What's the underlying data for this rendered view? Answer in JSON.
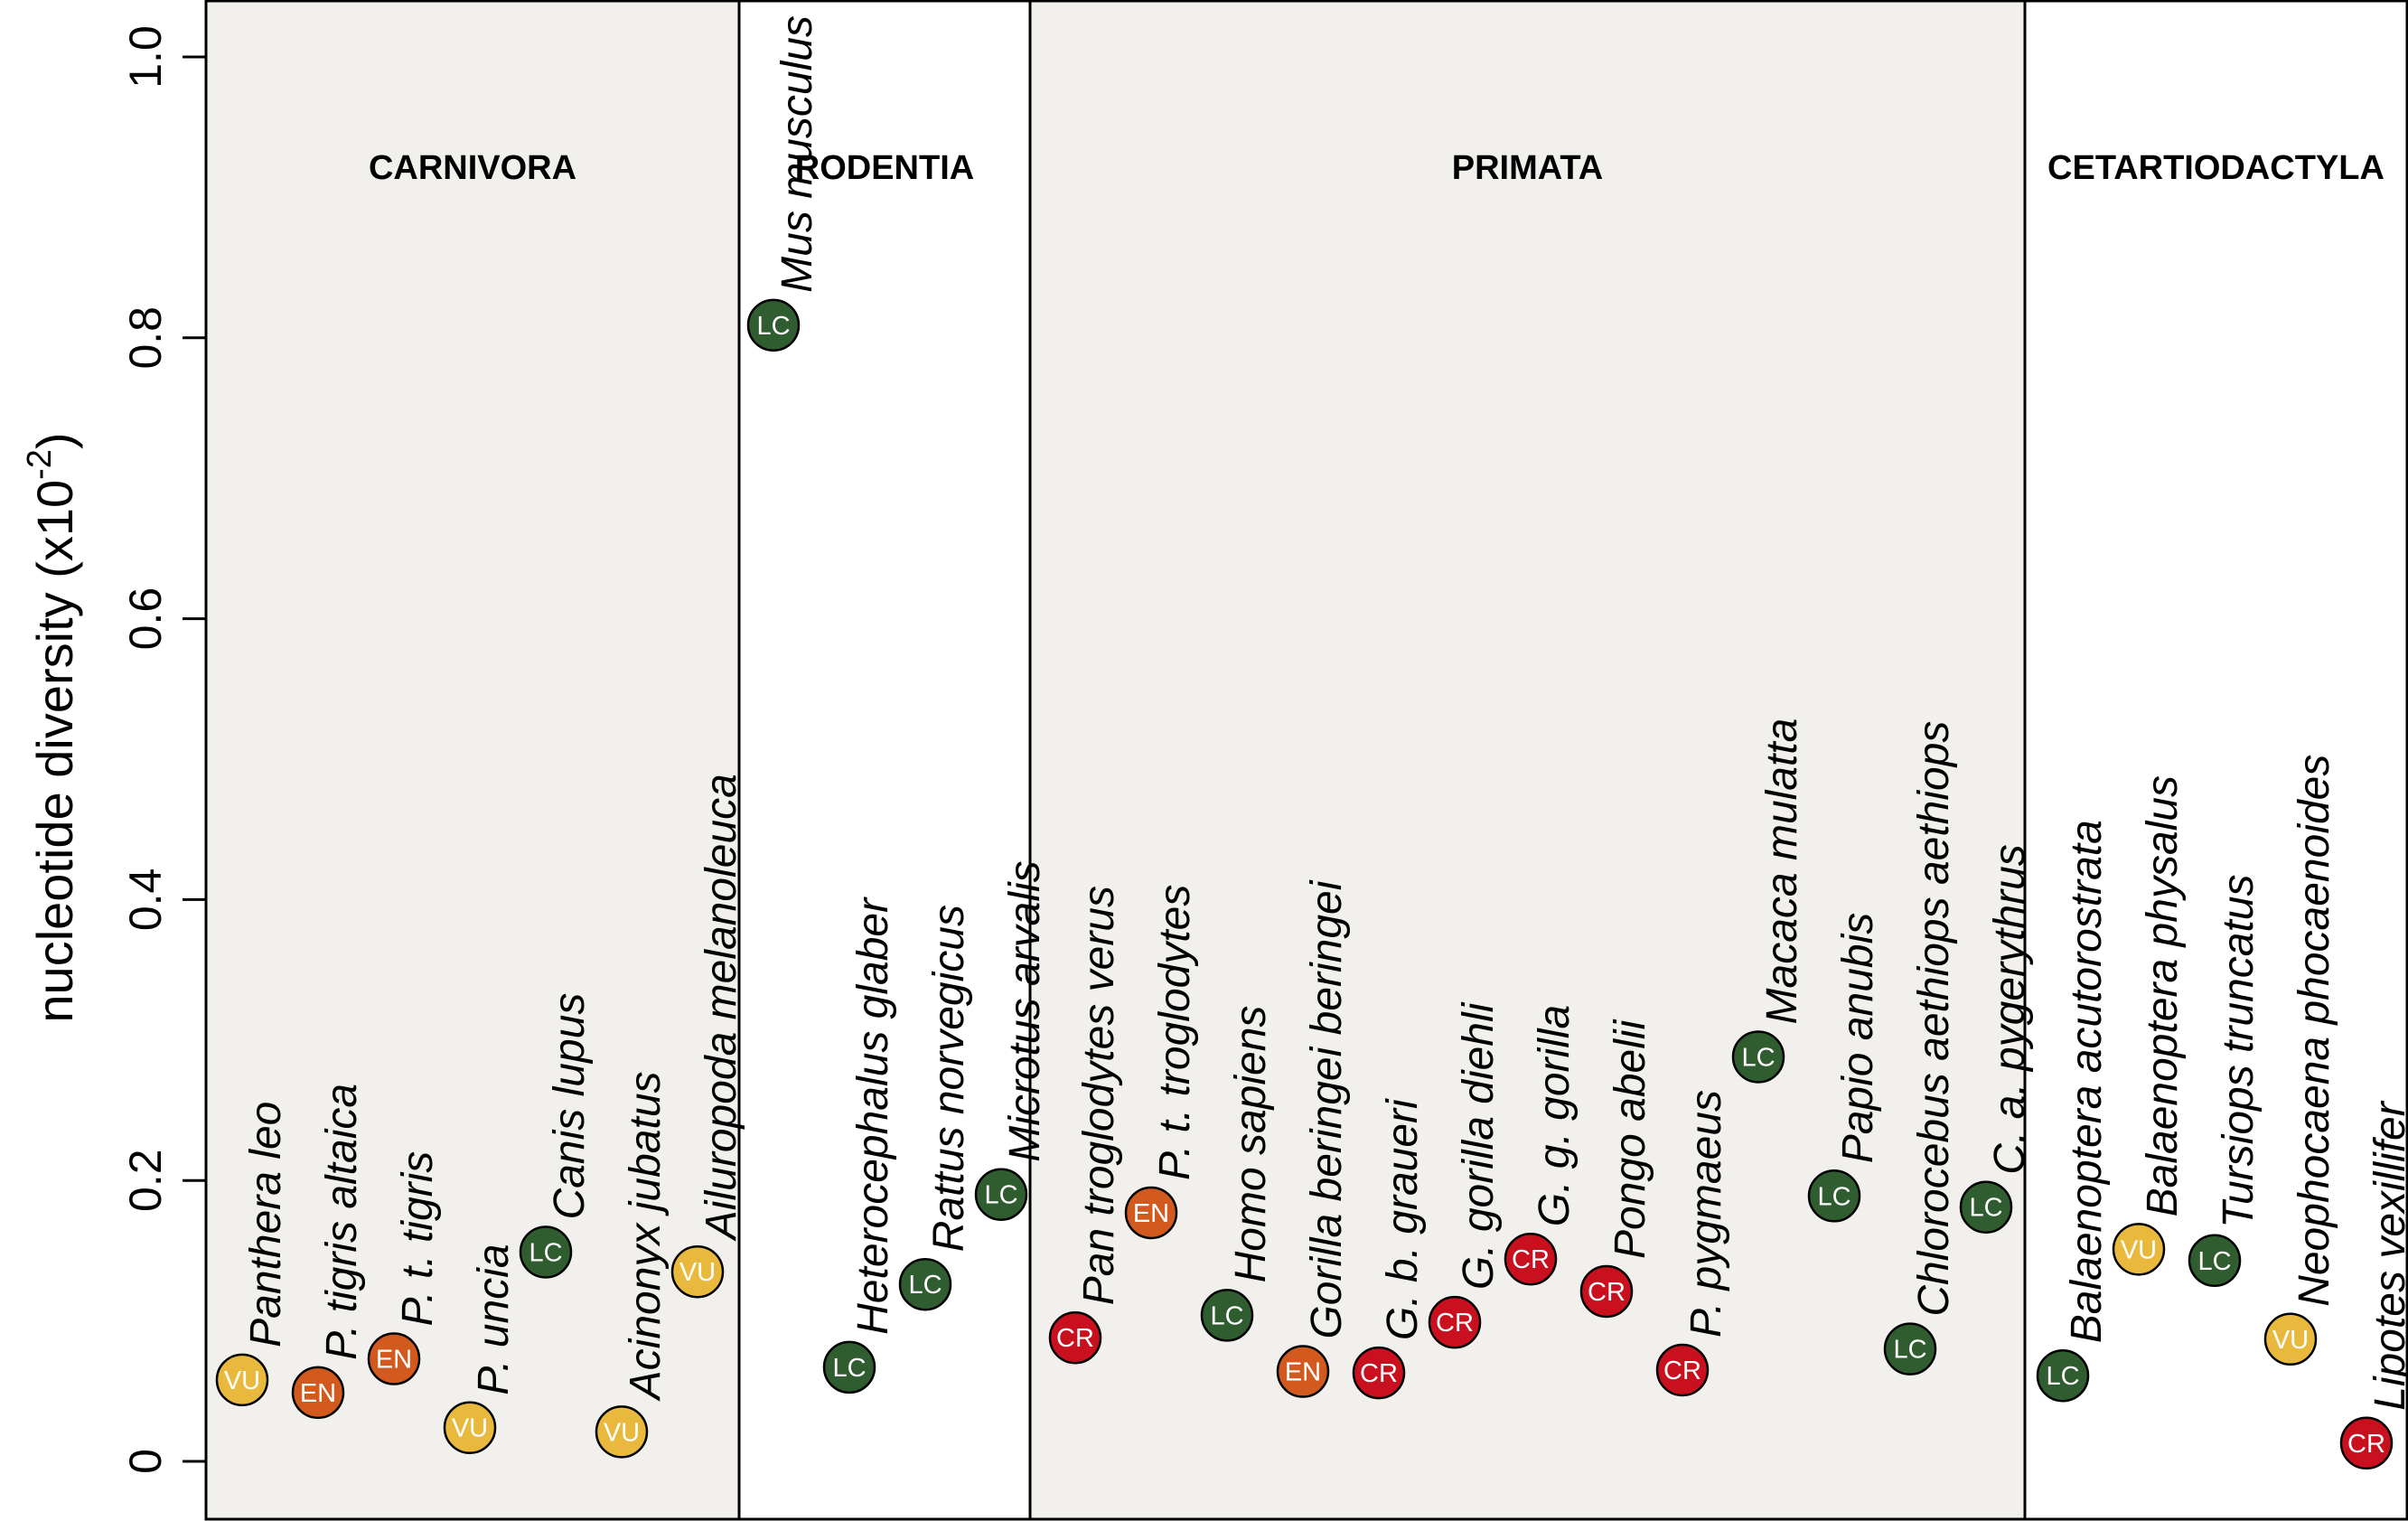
{
  "chart_data": {
    "type": "scatter",
    "ylabel": "nucleotide diversity (x10",
    "ylabel_sup": "-2",
    "ylabel_close": ")",
    "ylim": [
      0,
      1.0
    ],
    "yticks": [
      {
        "value": 0,
        "label": "0"
      },
      {
        "value": 0.2,
        "label": "0.2"
      },
      {
        "value": 0.4,
        "label": "0.4"
      },
      {
        "value": 0.6,
        "label": "0.6"
      },
      {
        "value": 0.8,
        "label": "0.8"
      },
      {
        "value": 1.0,
        "label": "1.0"
      }
    ],
    "status_colors": {
      "LC": "#2f5d2f",
      "VU": "#e8b93c",
      "EN": "#d35a1f",
      "CR": "#c8101e"
    },
    "shaded_color": "#f1f0ec",
    "groups": [
      {
        "name": "CARNIVORA",
        "shaded": true,
        "species": [
          {
            "name": "Panthera leo",
            "status": "VU",
            "value": 0.058
          },
          {
            "name": "P. tigris altaica",
            "status": "EN",
            "value": 0.049
          },
          {
            "name": "P. t. tigris",
            "status": "EN",
            "value": 0.073
          },
          {
            "name": "P. uncia",
            "status": "VU",
            "value": 0.024
          },
          {
            "name": "Canis lupus",
            "status": "LC",
            "value": 0.149
          },
          {
            "name": "Acinonyx jubatus",
            "status": "VU",
            "value": 0.021
          },
          {
            "name": "Ailuropoda melanoleuca",
            "status": "VU",
            "value": 0.135
          }
        ]
      },
      {
        "name": "RODENTIA",
        "shaded": false,
        "species": [
          {
            "name": "Mus musculus castaneus",
            "status": "LC",
            "value": 0.809
          },
          {
            "name": "Heterocephalus glaber",
            "status": "LC",
            "value": 0.067
          },
          {
            "name": "Rattus norvegicus",
            "status": "LC",
            "value": 0.126
          },
          {
            "name": "Microtus arvalis",
            "status": "LC",
            "value": 0.19
          }
        ]
      },
      {
        "name": "PRIMATA",
        "shaded": true,
        "species": [
          {
            "name": "Pan troglodytes verus",
            "status": "CR",
            "value": 0.088
          },
          {
            "name": "P. t. troglodytes",
            "status": "EN",
            "value": 0.177
          },
          {
            "name": "Homo sapiens",
            "status": "LC",
            "value": 0.104
          },
          {
            "name": "Gorilla beringei beringei",
            "status": "EN",
            "value": 0.064
          },
          {
            "name": "G. b. graueri",
            "status": "CR",
            "value": 0.063
          },
          {
            "name": "G. gorilla diehli",
            "status": "CR",
            "value": 0.099
          },
          {
            "name": "G. g. gorilla",
            "status": "CR",
            "value": 0.144
          },
          {
            "name": "Pongo abelii",
            "status": "CR",
            "value": 0.121
          },
          {
            "name": "P. pygmaeus",
            "status": "CR",
            "value": 0.065
          },
          {
            "name": "Macaca mulatta",
            "status": "LC",
            "value": 0.288
          },
          {
            "name": "Papio anubis",
            "status": "LC",
            "value": 0.189
          },
          {
            "name": "Chlorocebus aethiops aethiops",
            "status": "LC",
            "value": 0.08
          },
          {
            "name": "C. a. pygerythrus",
            "status": "LC",
            "value": 0.181
          }
        ]
      },
      {
        "name": "CETARTIODACTYLA",
        "shaded": false,
        "species": [
          {
            "name": "Balaenoptera acutorostrata",
            "status": "LC",
            "value": 0.061
          },
          {
            "name": "Balaenoptera physalus",
            "status": "VU",
            "value": 0.151
          },
          {
            "name": "Tursiops truncatus",
            "status": "LC",
            "value": 0.143
          },
          {
            "name": "Neophocaena phocaenoides",
            "status": "VU",
            "value": 0.087
          },
          {
            "name": "Lipotes vexillifer",
            "status": "CR",
            "value": 0.013
          }
        ]
      }
    ]
  }
}
